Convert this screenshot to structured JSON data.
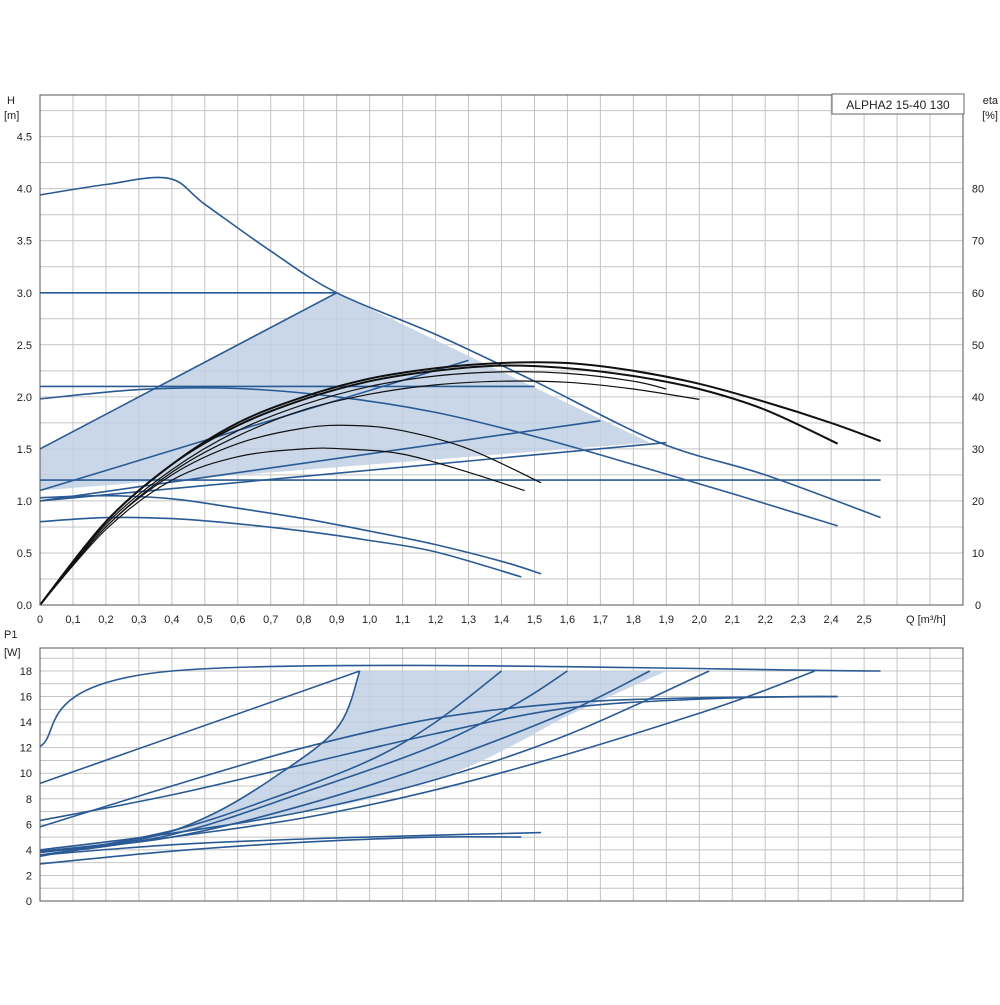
{
  "colors": {
    "curve": "#2a5a94",
    "eta": "#111111",
    "shade": "#bfd0e4",
    "grid": "#c4c4c4"
  },
  "legend": "ALPHA2 15-40 130",
  "chart_data": [
    {
      "id": "head",
      "type": "line",
      "ylabel_top": "H",
      "ylabel_unit": "[m]",
      "y2label_top": "eta",
      "y2label_unit": "[%]",
      "xlabel": "Q [m³/h]",
      "xlim": [
        0,
        2.8
      ],
      "ylim": [
        0,
        4.9
      ],
      "y2lim": [
        0,
        98
      ],
      "x_ticks": [
        "0",
        "0,1",
        "0,2",
        "0,3",
        "0,4",
        "0,5",
        "0,6",
        "0,7",
        "0,8",
        "0,9",
        "1,0",
        "1,1",
        "1,2",
        "1,3",
        "1,4",
        "1,5",
        "1,6",
        "1,7",
        "1,8",
        "1,9",
        "2,0",
        "2,1",
        "2,2",
        "2,3",
        "2,4",
        "2,5"
      ],
      "y_ticks": [
        "0.0",
        "0.5",
        "1.0",
        "1.5",
        "2.0",
        "2.5",
        "3.0",
        "3.5",
        "4.0",
        "4.5"
      ],
      "y2_ticks": [
        "0",
        "10",
        "20",
        "30",
        "40",
        "50",
        "60",
        "70",
        "80"
      ],
      "grid": true,
      "shaded_region": [
        [
          0,
          1.5
        ],
        [
          0.9,
          3.0
        ],
        [
          1.85,
          1.56
        ],
        [
          0,
          1.1
        ]
      ],
      "series": [
        {
          "style": "curve",
          "points": [
            [
              0,
              3.94
            ],
            [
              0.2,
              4.04
            ],
            [
              0.39,
              4.1
            ],
            [
              0.5,
              3.85
            ],
            [
              0.7,
              3.4
            ],
            [
              0.9,
              3.0
            ],
            [
              1.2,
              2.6
            ],
            [
              1.5,
              2.15
            ],
            [
              1.88,
              1.56
            ],
            [
              2.2,
              1.25
            ],
            [
              2.55,
              0.84
            ]
          ]
        },
        {
          "style": "curve",
          "points": [
            [
              0,
              3.0
            ],
            [
              0.9,
              3.0
            ]
          ]
        },
        {
          "style": "curve",
          "points": [
            [
              0,
              1.5
            ],
            [
              0.9,
              3.0
            ]
          ]
        },
        {
          "style": "curve",
          "points": [
            [
              0,
              1.1
            ],
            [
              1.3,
              2.35
            ]
          ]
        },
        {
          "style": "curve",
          "points": [
            [
              0,
              1.0
            ],
            [
              1.7,
              1.77
            ]
          ]
        },
        {
          "style": "curve",
          "points": [
            [
              0,
              1.0
            ],
            [
              1.9,
              1.56
            ]
          ]
        },
        {
          "style": "curve",
          "points": [
            [
              0,
              2.1
            ],
            [
              1.5,
              2.1
            ]
          ]
        },
        {
          "style": "curve",
          "points": [
            [
              0,
              1.2
            ],
            [
              2.55,
              1.2
            ]
          ]
        },
        {
          "style": "curve",
          "points": [
            [
              0,
              1.98
            ],
            [
              0.3,
              2.07
            ],
            [
              0.6,
              2.08
            ],
            [
              0.9,
              2.0
            ],
            [
              1.2,
              1.85
            ],
            [
              1.5,
              1.62
            ],
            [
              1.8,
              1.35
            ],
            [
              2.1,
              1.07
            ],
            [
              2.42,
              0.76
            ]
          ]
        },
        {
          "style": "curve",
          "points": [
            [
              0,
              1.03
            ],
            [
              0.2,
              1.05
            ],
            [
              0.4,
              1.02
            ],
            [
              0.6,
              0.93
            ],
            [
              0.8,
              0.83
            ],
            [
              1.0,
              0.71
            ],
            [
              1.2,
              0.58
            ],
            [
              1.4,
              0.42
            ],
            [
              1.52,
              0.3
            ]
          ]
        },
        {
          "style": "curve",
          "points": [
            [
              0,
              0.8
            ],
            [
              0.2,
              0.84
            ],
            [
              0.4,
              0.83
            ],
            [
              0.6,
              0.78
            ],
            [
              0.8,
              0.71
            ],
            [
              1.0,
              0.62
            ],
            [
              1.2,
              0.51
            ],
            [
              1.46,
              0.27
            ]
          ]
        }
      ],
      "eta_series": [
        {
          "points": [
            [
              0,
              0
            ],
            [
              0.2,
              16
            ],
            [
              0.4,
              27
            ],
            [
              0.6,
              35
            ],
            [
              0.8,
              40
            ],
            [
              1.0,
              43.5
            ],
            [
              1.2,
              45.5
            ],
            [
              1.4,
              46.5
            ],
            [
              1.6,
              46.5
            ],
            [
              1.8,
              45
            ],
            [
              2.0,
              42.5
            ],
            [
              2.2,
              39
            ],
            [
              2.4,
              35
            ],
            [
              2.55,
              31.5
            ]
          ]
        },
        {
          "points": [
            [
              0,
              0
            ],
            [
              0.2,
              16
            ],
            [
              0.4,
              27
            ],
            [
              0.6,
              34.5
            ],
            [
              0.8,
              39.5
            ],
            [
              1.0,
              43
            ],
            [
              1.2,
              45
            ],
            [
              1.4,
              46
            ],
            [
              1.6,
              45.5
            ],
            [
              1.8,
              44
            ],
            [
              2.0,
              41.5
            ],
            [
              2.2,
              37.5
            ],
            [
              2.42,
              31
            ]
          ]
        },
        {
          "points": [
            [
              0,
              0
            ],
            [
              0.2,
              15.5
            ],
            [
              0.4,
              26
            ],
            [
              0.6,
              33.5
            ],
            [
              0.8,
              38.5
            ],
            [
              1.0,
              42
            ],
            [
              1.2,
              44
            ],
            [
              1.4,
              44.8
            ],
            [
              1.6,
              44.5
            ],
            [
              1.8,
              43
            ],
            [
              1.9,
              41.5
            ]
          ]
        },
        {
          "points": [
            [
              0,
              0
            ],
            [
              0.2,
              15
            ],
            [
              0.4,
              25.5
            ],
            [
              0.6,
              32.5
            ],
            [
              0.8,
              37.5
            ],
            [
              1.0,
              40.5
            ],
            [
              1.2,
              42.3
            ],
            [
              1.4,
              43
            ],
            [
              1.6,
              42.8
            ],
            [
              1.8,
              41.5
            ],
            [
              2.0,
              39.5
            ]
          ]
        },
        {
          "points": [
            [
              0,
              0
            ],
            [
              0.2,
              15
            ],
            [
              0.4,
              25
            ],
            [
              0.6,
              31
            ],
            [
              0.8,
              34
            ],
            [
              0.95,
              34.5
            ],
            [
              1.1,
              33.5
            ],
            [
              1.3,
              30
            ],
            [
              1.52,
              23.5
            ]
          ]
        },
        {
          "points": [
            [
              0,
              0
            ],
            [
              0.2,
              14.5
            ],
            [
              0.4,
              24
            ],
            [
              0.6,
              28.5
            ],
            [
              0.8,
              30
            ],
            [
              0.92,
              30
            ],
            [
              1.1,
              29
            ],
            [
              1.3,
              25.5
            ],
            [
              1.47,
              22
            ]
          ]
        }
      ]
    },
    {
      "id": "power",
      "type": "line",
      "ylabel_top": "P1",
      "ylabel_unit": "[W]",
      "xlim": [
        0,
        2.8
      ],
      "ylim": [
        0,
        19.8
      ],
      "y_ticks": [
        "0",
        "2",
        "4",
        "6",
        "8",
        "10",
        "12",
        "14",
        "16",
        "18"
      ],
      "grid": true,
      "shaded_region": [
        [
          0,
          4.0
        ],
        [
          0.3,
          4.8
        ],
        [
          0.5,
          6.5
        ],
        [
          0.7,
          9.5
        ],
        [
          0.9,
          13.5
        ],
        [
          0.97,
          18
        ],
        [
          1.9,
          18
        ],
        [
          1.6,
          14.5
        ],
        [
          1.3,
          10.5
        ],
        [
          1.0,
          8.0
        ],
        [
          0.7,
          6.5
        ],
        [
          0.4,
          5.3
        ],
        [
          0,
          4.0
        ]
      ],
      "series": [
        {
          "style": "curve",
          "points": [
            [
              0,
              12.1
            ],
            [
              0.4,
              18
            ],
            [
              2.55,
              18
            ]
          ]
        },
        {
          "style": "curve",
          "points": [
            [
              0,
              9.2
            ],
            [
              0.97,
              18
            ]
          ]
        },
        {
          "style": "curve",
          "points": [
            [
              0,
              3.9
            ],
            [
              0.3,
              4.8
            ],
            [
              0.5,
              6.5
            ],
            [
              0.7,
              9.5
            ],
            [
              0.9,
              13.5
            ],
            [
              0.97,
              18
            ]
          ]
        },
        {
          "style": "curve",
          "points": [
            [
              0,
              3.5
            ],
            [
              0.4,
              5.5
            ],
            [
              0.7,
              8.0
            ],
            [
              1.0,
              11.0
            ],
            [
              1.2,
              14.0
            ],
            [
              1.4,
              18
            ]
          ]
        },
        {
          "style": "curve",
          "points": [
            [
              0,
              3.6
            ],
            [
              0.4,
              5.2
            ],
            [
              0.8,
              8.5
            ],
            [
              1.2,
              12.2
            ],
            [
              1.45,
              15.5
            ],
            [
              1.6,
              18
            ]
          ]
        },
        {
          "style": "curve",
          "points": [
            [
              0,
              3.8
            ],
            [
              0.4,
              5.0
            ],
            [
              0.8,
              7.5
            ],
            [
              1.2,
              10.8
            ],
            [
              1.6,
              14.8
            ],
            [
              1.85,
              18
            ]
          ]
        },
        {
          "style": "curve",
          "points": [
            [
              0,
              4.0
            ],
            [
              0.4,
              5.3
            ],
            [
              0.8,
              7.0
            ],
            [
              1.2,
              9.5
            ],
            [
              1.6,
              13.0
            ],
            [
              2.03,
              18
            ]
          ]
        },
        {
          "style": "curve",
          "points": [
            [
              0,
              3.6
            ],
            [
              0.4,
              5.0
            ],
            [
              0.8,
              6.5
            ],
            [
              1.2,
              8.7
            ],
            [
              1.6,
              11.5
            ],
            [
              2.0,
              14.7
            ],
            [
              2.2,
              16.5
            ],
            [
              2.35,
              18
            ]
          ]
        },
        {
          "style": "curve",
          "points": [
            [
              0,
              6.3
            ],
            [
              0.4,
              8.3
            ],
            [
              0.8,
              10.7
            ],
            [
              1.2,
              13.1
            ],
            [
              1.6,
              15.1
            ],
            [
              2.0,
              15.8
            ],
            [
              2.3,
              16.0
            ],
            [
              2.42,
              16.0
            ]
          ]
        },
        {
          "style": "curve",
          "points": [
            [
              0,
              5.8
            ],
            [
              0.4,
              9.0
            ],
            [
              0.8,
              12.0
            ],
            [
              1.2,
              14.3
            ],
            [
              1.6,
              15.5
            ],
            [
              2.0,
              15.9
            ],
            [
              2.42,
              16.0
            ]
          ]
        },
        {
          "style": "curve",
          "points": [
            [
              0,
              3.6
            ],
            [
              0.4,
              4.4
            ],
            [
              0.8,
              4.85
            ],
            [
              1.2,
              5.15
            ],
            [
              1.52,
              5.35
            ]
          ]
        },
        {
          "style": "curve",
          "points": [
            [
              0,
              2.9
            ],
            [
              0.4,
              3.9
            ],
            [
              0.8,
              4.6
            ],
            [
              1.2,
              5.0
            ],
            [
              1.46,
              5.0
            ]
          ]
        }
      ]
    }
  ]
}
